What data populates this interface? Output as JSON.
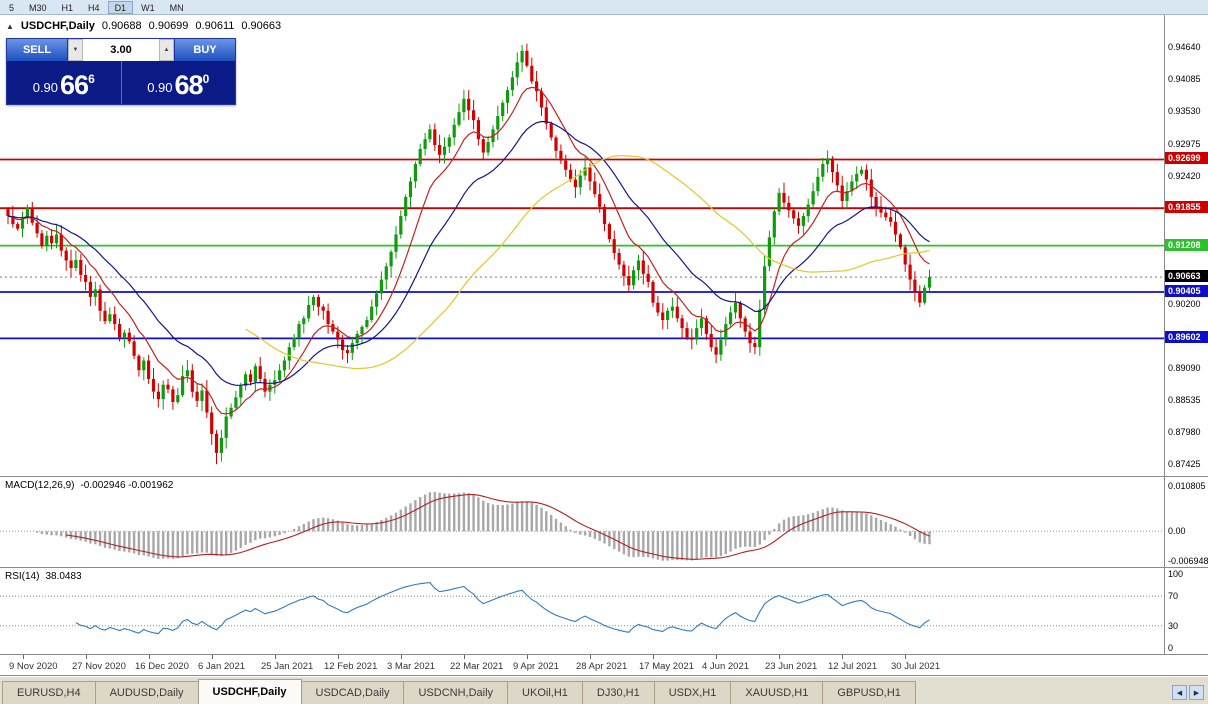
{
  "timeframe_bar": {
    "items": [
      "5",
      "M30",
      "H1",
      "H4",
      "D1",
      "W1",
      "MN"
    ],
    "active": "D1"
  },
  "chart_header": {
    "collapse_icon": "▲",
    "symbol": "USDCHF,Daily",
    "open": "0.90688",
    "high": "0.90699",
    "low": "0.90611",
    "close": "0.90663"
  },
  "trade_panel": {
    "sell_label": "SELL",
    "buy_label": "BUY",
    "volume": "3.00",
    "volume_down_icon": "▼",
    "volume_up_icon": "▲",
    "sell_price": {
      "base": "0.90",
      "big": "66",
      "sup": "6"
    },
    "buy_price": {
      "base": "0.90",
      "big": "68",
      "sup": "0"
    }
  },
  "tabs": {
    "items": [
      "EURUSD,H4",
      "AUDUSD,Daily",
      "USDCHF,Daily",
      "USDCAD,Daily",
      "USDCNH,Daily",
      "UKOil,H1",
      "DJ30,H1",
      "USDX,H1",
      "XAUUSD,H1",
      "GBPUSD,H1"
    ],
    "active_index": 2,
    "scroll_left_icon": "◀",
    "scroll_right_icon": "▶"
  },
  "chart_data": {
    "type": "candlestick",
    "symbol": "USDCHF",
    "timeframe": "Daily",
    "colors": {
      "bull": "#0e9b0e",
      "bear": "#d40000",
      "background": "#ffffff"
    },
    "y_axis": {
      "max_price": 0.952,
      "min_price": 0.8722,
      "labels": [
        {
          "p": 0.9464,
          "t": "0.94640"
        },
        {
          "p": 0.94085,
          "t": "0.94085"
        },
        {
          "p": 0.9353,
          "t": "0.93530"
        },
        {
          "p": 0.92975,
          "t": "0.92975"
        },
        {
          "p": 0.9242,
          "t": "0.92420"
        },
        {
          "p": 0.902,
          "t": "0.90200"
        },
        {
          "p": 0.8909,
          "t": "0.89090"
        },
        {
          "p": 0.88535,
          "t": "0.88535"
        },
        {
          "p": 0.8798,
          "t": "0.87980"
        },
        {
          "p": 0.87425,
          "t": "0.87425"
        }
      ]
    },
    "x_axis": {
      "ticks": [
        {
          "i": 3,
          "label": "9 Nov 2020"
        },
        {
          "i": 16,
          "label": "27 Nov 2020"
        },
        {
          "i": 29,
          "label": "16 Dec 2020"
        },
        {
          "i": 42,
          "label": "6 Jan 2021"
        },
        {
          "i": 55,
          "label": "25 Jan 2021"
        },
        {
          "i": 68,
          "label": "12 Feb 2021"
        },
        {
          "i": 81,
          "label": "3 Mar 2021"
        },
        {
          "i": 94,
          "label": "22 Mar 2021"
        },
        {
          "i": 107,
          "label": "9 Apr 2021"
        },
        {
          "i": 120,
          "label": "28 Apr 2021"
        },
        {
          "i": 133,
          "label": "17 May 2021"
        },
        {
          "i": 146,
          "label": "4 Jun 2021"
        },
        {
          "i": 159,
          "label": "23 Jun 2021"
        },
        {
          "i": 172,
          "label": "12 Jul 2021"
        },
        {
          "i": 185,
          "label": "30 Jul 2021"
        }
      ]
    },
    "levels": [
      {
        "price": 0.92699,
        "label": "0.92699",
        "color": "#cc0000"
      },
      {
        "price": 0.91855,
        "label": "0.91855",
        "color": "#cc0000"
      },
      {
        "price": 0.91208,
        "label": "0.91208",
        "color": "#2dc22d"
      },
      {
        "price": 0.90405,
        "label": "0.90405",
        "color": "#0f0fc8"
      },
      {
        "price": 0.89602,
        "label": "0.89602",
        "color": "#0f0fc8"
      }
    ],
    "current_price": {
      "price": 0.90663,
      "label": "0.90663",
      "color": "#000000"
    },
    "moving_averages": [
      {
        "type": "ema",
        "period": 10,
        "color": "#c22222"
      },
      {
        "type": "ema",
        "period": 24,
        "color": "#15158c"
      },
      {
        "type": "sma",
        "period": 50,
        "color": "#e3c62b"
      }
    ],
    "candles": {
      "closes": [
        0.9172,
        0.9158,
        0.915,
        0.9168,
        0.9186,
        0.916,
        0.9142,
        0.912,
        0.9138,
        0.9125,
        0.914,
        0.9112,
        0.9095,
        0.9082,
        0.9096,
        0.907,
        0.9058,
        0.9032,
        0.9045,
        0.9008,
        0.899,
        0.9002,
        0.8985,
        0.8962,
        0.897,
        0.8955,
        0.893,
        0.8905,
        0.8922,
        0.889,
        0.8868,
        0.8855,
        0.888,
        0.8872,
        0.885,
        0.8862,
        0.8895,
        0.8905,
        0.8868,
        0.8852,
        0.887,
        0.8832,
        0.8795,
        0.8762,
        0.8788,
        0.8825,
        0.884,
        0.8858,
        0.8878,
        0.8898,
        0.8885,
        0.8912,
        0.889,
        0.8868,
        0.888,
        0.8888,
        0.8905,
        0.8922,
        0.8945,
        0.8962,
        0.8985,
        0.8995,
        0.9018,
        0.9032,
        0.9015,
        0.9008,
        0.8985,
        0.8972,
        0.8958,
        0.894,
        0.8935,
        0.8952,
        0.8968,
        0.898,
        0.8992,
        0.9015,
        0.9038,
        0.9062,
        0.9085,
        0.911,
        0.914,
        0.9172,
        0.9205,
        0.9232,
        0.9262,
        0.9288,
        0.9305,
        0.9322,
        0.9295,
        0.9278,
        0.9292,
        0.9308,
        0.933,
        0.9352,
        0.9375,
        0.9355,
        0.9338,
        0.9305,
        0.9282,
        0.93,
        0.9322,
        0.9345,
        0.9368,
        0.939,
        0.9412,
        0.9438,
        0.9458,
        0.9432,
        0.9405,
        0.9388,
        0.936,
        0.9332,
        0.9308,
        0.9285,
        0.9268,
        0.9252,
        0.9235,
        0.9222,
        0.9242,
        0.9256,
        0.9232,
        0.921,
        0.9188,
        0.9158,
        0.9132,
        0.9108,
        0.9088,
        0.9068,
        0.9052,
        0.9078,
        0.9095,
        0.9072,
        0.9058,
        0.9022,
        0.9005,
        0.8992,
        0.9008,
        0.9015,
        0.8995,
        0.8978,
        0.8962,
        0.8958,
        0.8978,
        0.8995,
        0.8968,
        0.8945,
        0.8932,
        0.8958,
        0.8985,
        0.9005,
        0.9022,
        0.8995,
        0.8972,
        0.8952,
        0.8945,
        0.901,
        0.9085,
        0.9135,
        0.918,
        0.9212,
        0.9195,
        0.9182,
        0.9168,
        0.9155,
        0.9172,
        0.9192,
        0.9215,
        0.924,
        0.9262,
        0.9272,
        0.9248,
        0.9225,
        0.9198,
        0.9215,
        0.9232,
        0.9245,
        0.9252,
        0.9235,
        0.9205,
        0.9188,
        0.9178,
        0.917,
        0.9162,
        0.914,
        0.9118,
        0.9088,
        0.9062,
        0.9042,
        0.9022,
        0.9048,
        0.90663
      ],
      "wick_overrides": {
        "4": {
          "high": 0.9192
        },
        "43": {
          "low": 0.87425
        },
        "106": {
          "high": 0.9468
        },
        "188": {
          "low": 0.9014
        }
      }
    },
    "macd": {
      "label": "MACD(12,26,9)",
      "values": "-0.002946 -0.001962",
      "fast": 12,
      "slow": 26,
      "signal": 9,
      "range": {
        "max": 0.010805,
        "min": -0.006948
      },
      "axis_labels": [
        "0.010805",
        "0.00",
        "-0.006948"
      ],
      "bar_color": "#a8a8a8",
      "signal_color": "#b22222"
    },
    "rsi": {
      "label": "RSI(14)",
      "value": "38.0483",
      "period": 14,
      "color": "#2e7dbe",
      "axis": [
        {
          "v": 100,
          "t": "100"
        },
        {
          "v": 70,
          "t": "70"
        },
        {
          "v": 30,
          "t": "30"
        },
        {
          "v": 0,
          "t": "0"
        }
      ],
      "level_lines": [
        70,
        30
      ]
    }
  }
}
